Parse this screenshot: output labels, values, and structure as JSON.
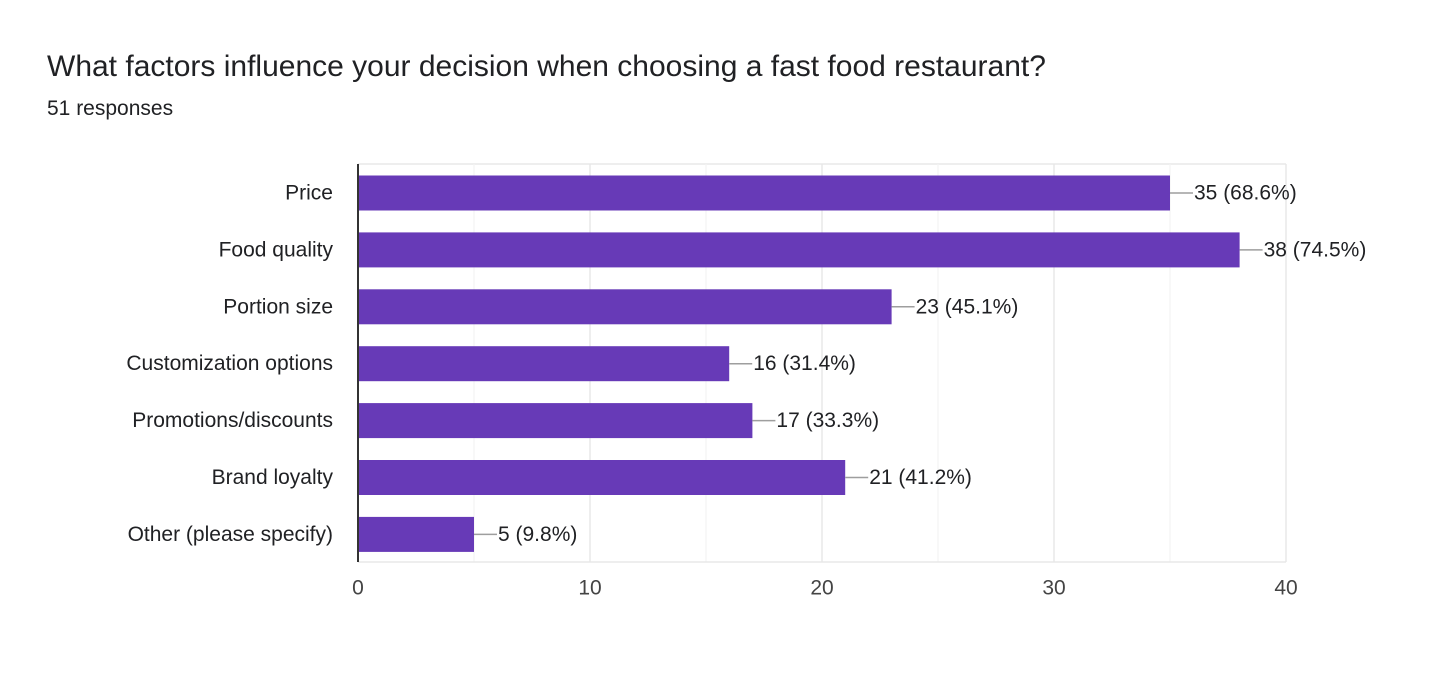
{
  "question": {
    "title": "What factors influence your decision when choosing a fast food restaurant?",
    "responses": "51 responses"
  },
  "colors": {
    "bar": "#673ab7",
    "grid": "#e8e8e8",
    "axis": "#333333",
    "connector": "#9e9e9e",
    "text": "#202124",
    "tick_text": "#444444"
  },
  "chart_data": {
    "type": "bar",
    "orientation": "horizontal",
    "categories": [
      "Price",
      "Food quality",
      "Portion size",
      "Customization options",
      "Promotions/discounts",
      "Brand loyalty",
      "Other (please specify)"
    ],
    "values": [
      35,
      38,
      23,
      16,
      17,
      21,
      5
    ],
    "data_labels": [
      "35 (68.6%)",
      "38 (74.5%)",
      "23 (45.1%)",
      "16 (31.4%)",
      "17 (33.3%)",
      "21 (41.2%)",
      "5 (9.8%)"
    ],
    "xlim": [
      0,
      40
    ],
    "x_ticks": [
      0,
      10,
      20,
      30,
      40
    ],
    "x_tick_labels": [
      "0",
      "10",
      "20",
      "30",
      "40"
    ],
    "grid": true,
    "legend": "none"
  }
}
